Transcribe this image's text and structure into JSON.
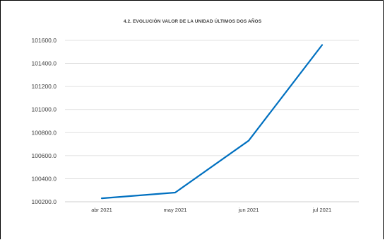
{
  "chart_data": {
    "type": "line",
    "title": "4.2. EVOLUCIÓN VALOR DE LA UNIDAD ÚLTIMOS DOS AÑOS",
    "categories": [
      "abr 2021",
      "may 2021",
      "jun 2021",
      "jul 2021"
    ],
    "values": [
      100230,
      100280,
      100730,
      101560
    ],
    "ylim": [
      100200,
      101600
    ],
    "yticks": [
      "101600.0",
      "101400.0",
      "101200.0",
      "101000.0",
      "100800.0",
      "100600.0",
      "100400.0",
      "100200.0"
    ],
    "grid": true,
    "line_color": "#0070c0"
  }
}
